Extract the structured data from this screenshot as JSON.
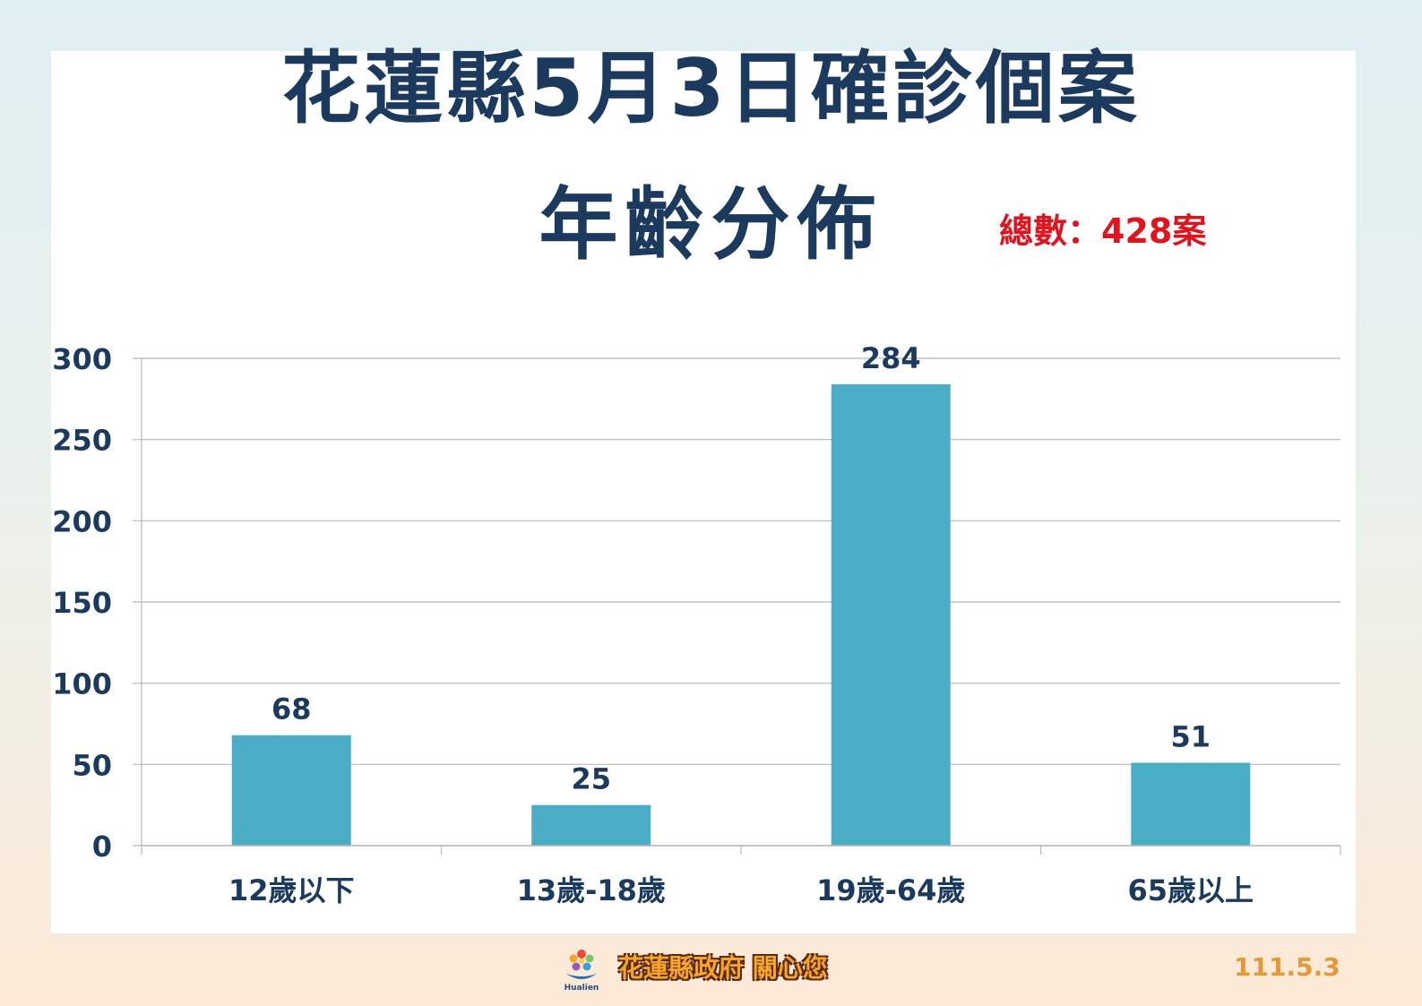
{
  "header": {
    "title_line1": "花蓮縣5月3日確診個案",
    "title_line2": "年齡分佈",
    "total_label": "總數：428案"
  },
  "footer": {
    "org_text": "花蓮縣政府 關心您",
    "logo_text": "Hualien",
    "date": "111.5.3"
  },
  "colors": {
    "bar": "#4badc6",
    "title": "#1c3a5e",
    "total": "#e0141e",
    "axis_text": "#1c3a5e"
  },
  "chart_data": {
    "type": "bar",
    "categories": [
      "12歲以下",
      "13歲-18歲",
      "19歲-64歲",
      "65歲以上"
    ],
    "values": [
      68,
      25,
      284,
      51
    ],
    "data_labels": [
      "68",
      "25",
      "284",
      "51"
    ],
    "ylim": [
      0,
      300
    ],
    "yticks": [
      0,
      50,
      100,
      150,
      200,
      250,
      300
    ],
    "grid": true,
    "legend": "none"
  }
}
